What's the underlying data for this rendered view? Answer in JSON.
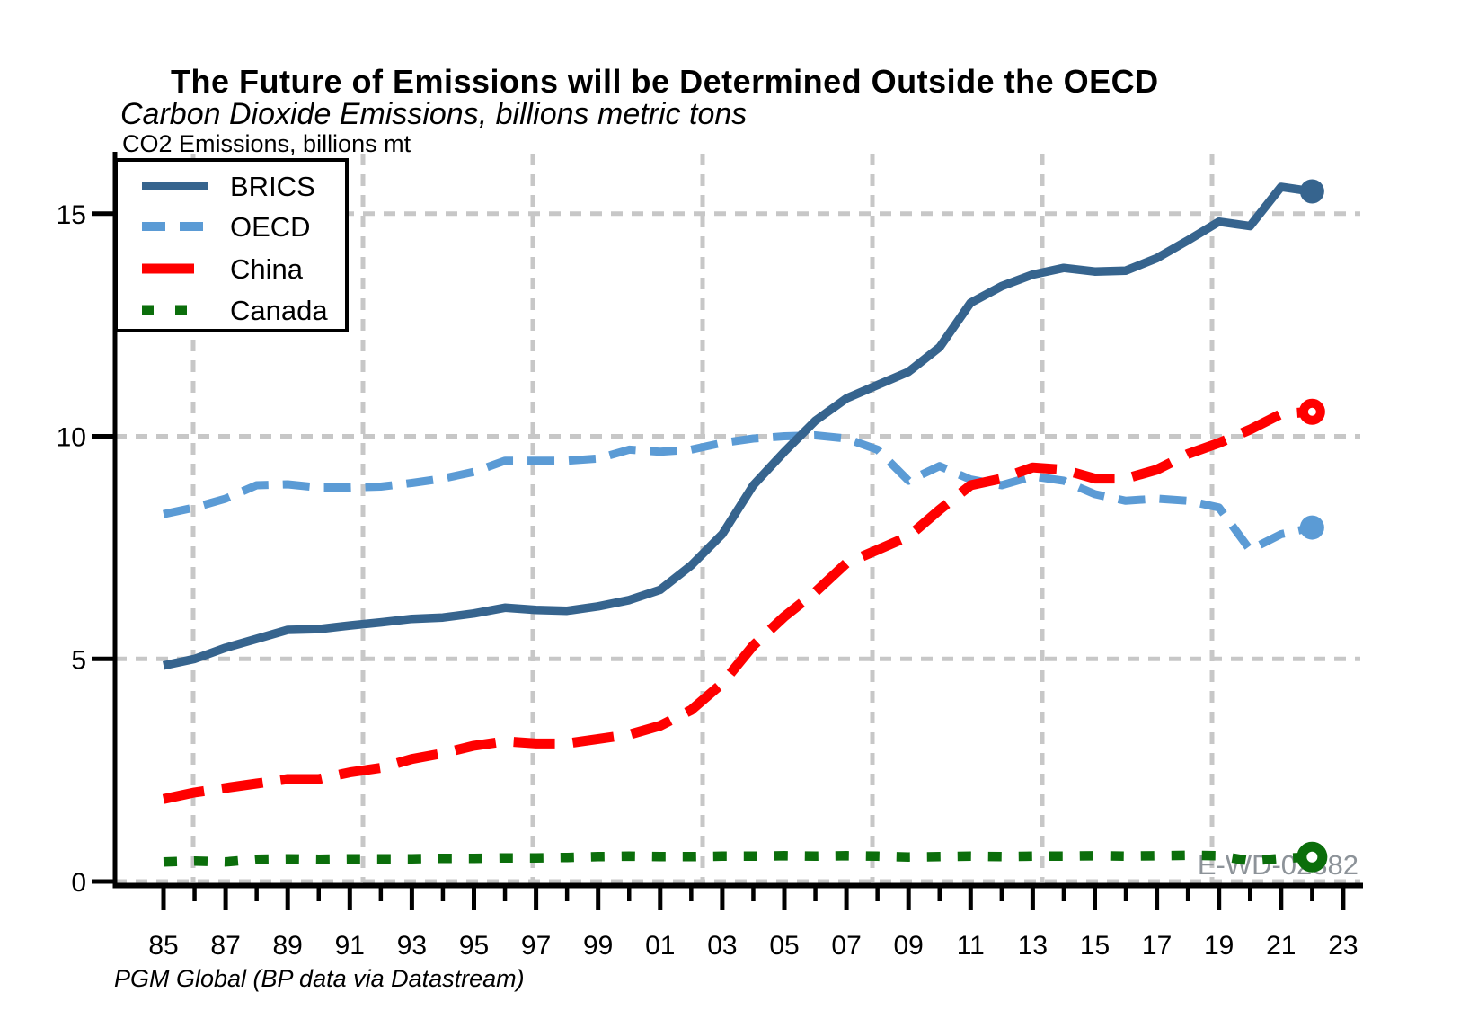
{
  "header": {
    "title": "The Future of Emissions will be Determined Outside the OECD",
    "subtitle": "Carbon Dioxide Emissions, billions metric tons",
    "axis_unit_label": "CO2 Emissions, billions mt"
  },
  "footer": {
    "source_note": "PGM Global (BP data via Datastream)"
  },
  "chart_data": {
    "type": "line",
    "title": "The Future of Emissions will be Determined Outside the OECD",
    "subtitle": "Carbon Dioxide Emissions, billions metric tons",
    "ylabel": "CO2 Emissions, billions mt",
    "source": "PGM Global (BP data via Datastream)",
    "watermark": "E-WD-02382",
    "watermark_color": "#8d9399",
    "background_color": "#ffffff",
    "axis_color": "#000000",
    "grid": {
      "horizontal": true,
      "vertical": true,
      "style": "dashed",
      "color": "#c7c7c7"
    },
    "legend": {
      "position": "top-left",
      "border_color": "#000000",
      "fill": "#ffffff"
    },
    "ylim": [
      0,
      16.3
    ],
    "yticks": [
      0,
      5,
      10,
      15
    ],
    "x_tick_labels": [
      "85",
      "87",
      "89",
      "91",
      "93",
      "95",
      "97",
      "99",
      "01",
      "03",
      "05",
      "07",
      "09",
      "11",
      "13",
      "15",
      "17",
      "19",
      "21",
      "23"
    ],
    "years": [
      1985,
      1986,
      1987,
      1988,
      1989,
      1990,
      1991,
      1992,
      1993,
      1994,
      1995,
      1996,
      1997,
      1998,
      1999,
      2000,
      2001,
      2002,
      2003,
      2004,
      2005,
      2006,
      2007,
      2008,
      2009,
      2010,
      2011,
      2012,
      2013,
      2014,
      2015,
      2016,
      2017,
      2018,
      2019,
      2020,
      2021,
      2022
    ],
    "series": [
      {
        "name": "BRICS",
        "color": "#36648e",
        "line_style": "solid",
        "endpoint_marker": "filled-circle",
        "values": [
          4.85,
          5.0,
          5.25,
          5.45,
          5.65,
          5.67,
          5.75,
          5.82,
          5.9,
          5.93,
          6.02,
          6.15,
          6.1,
          6.08,
          6.18,
          6.32,
          6.55,
          7.1,
          7.8,
          8.9,
          9.65,
          10.35,
          10.85,
          11.15,
          11.45,
          12.0,
          13.0,
          13.37,
          13.63,
          13.78,
          13.7,
          13.72,
          14.0,
          14.4,
          14.82,
          14.72,
          15.6,
          15.5
        ]
      },
      {
        "name": "OECD",
        "color": "#5b9bd5",
        "line_style": "dash",
        "endpoint_marker": "filled-circle",
        "values": [
          8.25,
          8.4,
          8.6,
          8.9,
          8.92,
          8.85,
          8.85,
          8.87,
          8.95,
          9.05,
          9.2,
          9.45,
          9.45,
          9.45,
          9.5,
          9.7,
          9.65,
          9.7,
          9.85,
          9.95,
          10.0,
          10.02,
          9.95,
          9.7,
          9.0,
          9.33,
          9.03,
          8.9,
          9.1,
          9.0,
          8.7,
          8.55,
          8.6,
          8.55,
          8.4,
          7.45,
          7.8,
          7.95
        ]
      },
      {
        "name": "China",
        "color": "#ff0000",
        "line_style": "long-dash",
        "endpoint_marker": "open-circle",
        "values": [
          1.85,
          2.0,
          2.1,
          2.2,
          2.3,
          2.3,
          2.45,
          2.55,
          2.75,
          2.88,
          3.05,
          3.15,
          3.1,
          3.1,
          3.2,
          3.3,
          3.5,
          3.85,
          4.45,
          5.3,
          5.95,
          6.5,
          7.15,
          7.45,
          7.75,
          8.35,
          8.9,
          9.05,
          9.3,
          9.25,
          9.05,
          9.05,
          9.25,
          9.6,
          9.85,
          10.15,
          10.5,
          10.55
        ]
      },
      {
        "name": "Canada",
        "color": "#0b6e0b",
        "line_style": "short-dash",
        "endpoint_marker": "open-circle",
        "values": [
          0.44,
          0.46,
          0.44,
          0.5,
          0.51,
          0.5,
          0.51,
          0.51,
          0.51,
          0.52,
          0.52,
          0.53,
          0.53,
          0.54,
          0.56,
          0.57,
          0.56,
          0.56,
          0.57,
          0.57,
          0.58,
          0.57,
          0.58,
          0.57,
          0.55,
          0.56,
          0.57,
          0.56,
          0.57,
          0.57,
          0.58,
          0.57,
          0.58,
          0.59,
          0.58,
          0.46,
          0.52,
          0.55
        ]
      }
    ]
  }
}
